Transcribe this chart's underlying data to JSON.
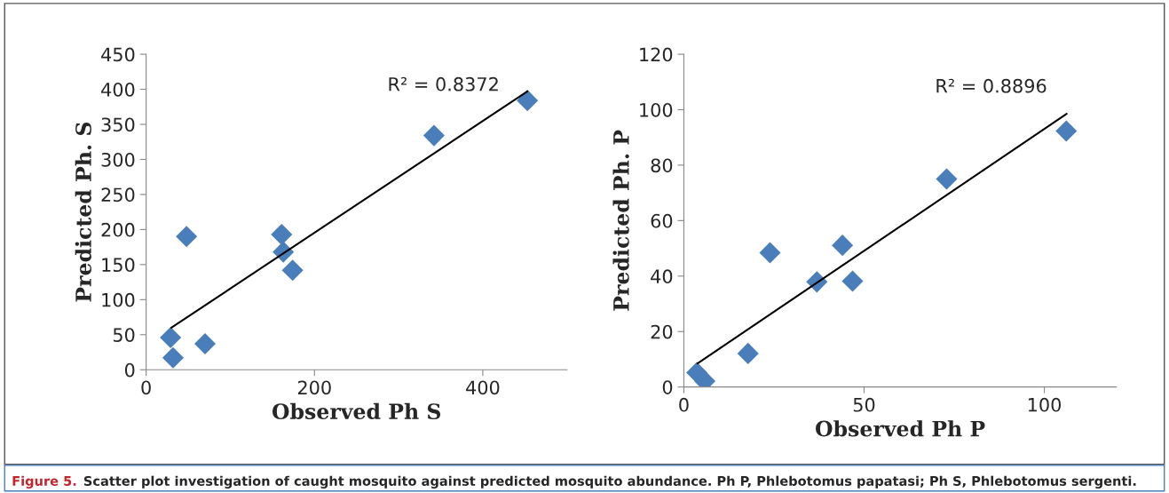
{
  "chart_data": [
    {
      "type": "scatter",
      "xlabel": "Observed Ph S",
      "ylabel": "Predicted Ph. S",
      "xlim": [
        0,
        500
      ],
      "ylim": [
        0,
        450
      ],
      "xticks": [
        0,
        200,
        400
      ],
      "yticks": [
        0,
        50,
        100,
        150,
        200,
        250,
        300,
        350,
        400,
        450
      ],
      "grid": false,
      "legend": false,
      "series": [
        {
          "marker": "diamond",
          "color": "#4a7ebb",
          "x": [
            29,
            32,
            70,
            48,
            161,
            163,
            174,
            342,
            453
          ],
          "values": [
            46,
            17,
            37,
            190,
            193,
            168,
            142,
            334,
            384
          ]
        },
        {
          "type": "line",
          "marker": "none",
          "color": "#000000",
          "x": [
            30,
            453
          ],
          "values": [
            60,
            397
          ]
        }
      ],
      "annotations": [
        "R² = 0.8372",
        "Figure 5.",
        "Scatter plot investigation of caught mosquito against predicted mosquito abundance. Ph P, Phlebotomus papatasi; Ph S, Phlebotomus sergenti."
      ]
    },
    {
      "type": "scatter",
      "xlabel": "Observed Ph P",
      "ylabel": "Predicted Ph. P",
      "xlim": [
        0,
        120
      ],
      "ylim": [
        0,
        120
      ],
      "xticks": [
        0,
        50,
        100
      ],
      "yticks": [
        0,
        20,
        40,
        60,
        80,
        100,
        120
      ],
      "grid": false,
      "legend": false,
      "series": [
        {
          "marker": "diamond",
          "color": "#4a7ebb",
          "x": [
            3.6,
            5.8,
            17.8,
            23.9,
            36.9,
            44,
            46.8,
            72.9,
            106.1
          ],
          "values": [
            5.2,
            2.1,
            12.1,
            48.4,
            37.9,
            51.1,
            38.2,
            75,
            92.3
          ]
        },
        {
          "type": "line",
          "marker": "none",
          "color": "#000000",
          "x": [
            3.8,
            106.2
          ],
          "values": [
            8.5,
            98.5
          ]
        }
      ],
      "annotations": [
        "R² = 0.8896"
      ]
    }
  ]
}
